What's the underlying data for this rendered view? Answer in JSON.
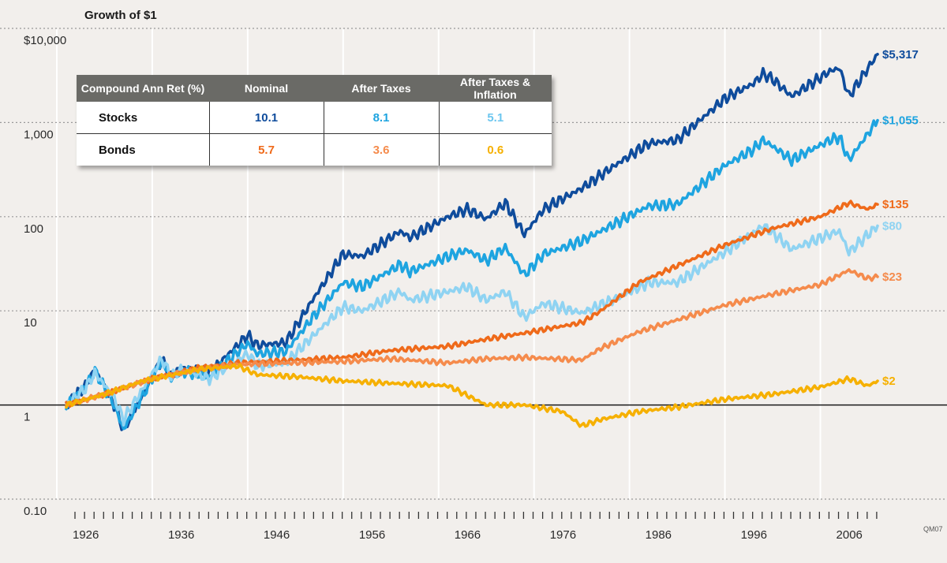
{
  "chart_data": {
    "type": "line",
    "title": "Growth of $1",
    "y_scale": "log",
    "ylim": [
      0.1,
      10000
    ],
    "y_ticks": [
      {
        "value": 10000,
        "label": "$10,000"
      },
      {
        "value": 1000,
        "label": "1,000"
      },
      {
        "value": 100,
        "label": "100"
      },
      {
        "value": 10,
        "label": "10"
      },
      {
        "value": 1,
        "label": "1"
      },
      {
        "value": 0.1,
        "label": "0.10"
      }
    ],
    "xlim": [
      1926,
      2011
    ],
    "x_ticks": [
      {
        "value": 1926,
        "label": "1926"
      },
      {
        "value": 1936,
        "label": "1936"
      },
      {
        "value": 1946,
        "label": "1946"
      },
      {
        "value": 1956,
        "label": "1956"
      },
      {
        "value": 1966,
        "label": "1966"
      },
      {
        "value": 1976,
        "label": "1976"
      },
      {
        "value": 1986,
        "label": "1986"
      },
      {
        "value": 1996,
        "label": "1996"
      },
      {
        "value": 2006,
        "label": "2006"
      }
    ],
    "code": "QM07",
    "series": [
      {
        "color": "#0f4c9c",
        "end_label": "$5,317",
        "x": [
          1926,
          1928,
          1929,
          1931,
          1932,
          1936,
          1937,
          1938,
          1941,
          1945,
          1946,
          1949,
          1952,
          1955,
          1957,
          1961,
          1962,
          1966,
          1968,
          1970,
          1972,
          1974,
          1976,
          1980,
          1984,
          1987,
          1990,
          1995,
          1998,
          1999,
          2000,
          2002,
          2006,
          2007,
          2008,
          2011
        ],
        "y": [
          1,
          1.6,
          2.4,
          1.0,
          0.55,
          3.0,
          2.0,
          2.5,
          2.2,
          5.5,
          4.3,
          4.6,
          14,
          40,
          38,
          70,
          60,
          100,
          120,
          95,
          140,
          65,
          120,
          200,
          380,
          600,
          650,
          1800,
          2600,
          3300,
          2900,
          1900,
          3500,
          3800,
          1900,
          5317
        ]
      },
      {
        "color": "#1ea4e0",
        "end_label": "$1,055",
        "x": [
          1926,
          1928,
          1929,
          1931,
          1932,
          1936,
          1937,
          1938,
          1941,
          1945,
          1946,
          1949,
          1952,
          1955,
          1957,
          1961,
          1962,
          1966,
          1968,
          1970,
          1972,
          1974,
          1976,
          1980,
          1984,
          1987,
          1990,
          1995,
          1998,
          1999,
          2000,
          2002,
          2006,
          2007,
          2008,
          2011
        ],
        "y": [
          1,
          1.6,
          2.3,
          1.0,
          0.55,
          2.9,
          1.9,
          2.3,
          2.0,
          4.5,
          3.5,
          3.7,
          9,
          20,
          18,
          31,
          26,
          38,
          44,
          34,
          47,
          24,
          40,
          55,
          90,
          130,
          135,
          350,
          520,
          650,
          560,
          400,
          650,
          700,
          400,
          1055
        ]
      },
      {
        "color": "#8fd3f2",
        "end_label": "$80",
        "x": [
          1926,
          1928,
          1929,
          1931,
          1932,
          1936,
          1937,
          1938,
          1941,
          1945,
          1946,
          1949,
          1952,
          1955,
          1957,
          1961,
          1962,
          1966,
          1968,
          1970,
          1972,
          1974,
          1976,
          1980,
          1984,
          1987,
          1990,
          1995,
          1998,
          1999,
          2000,
          2002,
          2006,
          2007,
          2008,
          2011
        ],
        "y": [
          1,
          1.5,
          2.2,
          1.2,
          0.7,
          3.1,
          2.0,
          2.4,
          1.9,
          3.5,
          2.6,
          2.8,
          5.6,
          11,
          10,
          16,
          13,
          16,
          18,
          13,
          16,
          8.5,
          12,
          9.5,
          14,
          20,
          20,
          42,
          68,
          80,
          68,
          45,
          65,
          70,
          42,
          80
        ]
      },
      {
        "color": "#ef6a1a",
        "end_label": "$135",
        "x": [
          1926,
          1930,
          1935,
          1940,
          1944,
          1950,
          1955,
          1960,
          1966,
          1970,
          1974,
          1980,
          1982,
          1986,
          1990,
          1995,
          2000,
          2005,
          2008,
          2010,
          2011
        ],
        "y": [
          1,
          1.3,
          1.9,
          2.5,
          2.8,
          3.0,
          3.2,
          3.8,
          4.2,
          5.0,
          5.8,
          7.5,
          10,
          20,
          30,
          50,
          75,
          100,
          140,
          120,
          135
        ]
      },
      {
        "color": "#f58b4c",
        "end_label": "$23",
        "x": [
          1926,
          1930,
          1935,
          1940,
          1944,
          1950,
          1955,
          1960,
          1966,
          1970,
          1974,
          1980,
          1982,
          1986,
          1990,
          1995,
          2000,
          2005,
          2008,
          2010,
          2011
        ],
        "y": [
          1,
          1.3,
          1.9,
          2.4,
          2.7,
          2.8,
          2.9,
          3.1,
          2.8,
          3.1,
          3.2,
          3.0,
          4.0,
          6.0,
          8.0,
          11.5,
          15,
          19,
          27,
          22,
          23
        ]
      },
      {
        "color": "#f6b000",
        "end_label": "$2",
        "x": [
          1926,
          1930,
          1934,
          1940,
          1944,
          1946,
          1950,
          1955,
          1960,
          1966,
          1970,
          1974,
          1978,
          1980,
          1982,
          1986,
          1990,
          1995,
          2000,
          2005,
          2008,
          2010,
          2011
        ],
        "y": [
          1,
          1.3,
          1.8,
          2.4,
          2.6,
          2.1,
          2.0,
          1.8,
          1.7,
          1.6,
          1.0,
          1.0,
          0.85,
          0.6,
          0.7,
          0.85,
          0.95,
          1.15,
          1.3,
          1.55,
          1.9,
          1.6,
          1.8
        ]
      }
    ]
  },
  "table": {
    "headers": [
      "Compound Ann Ret (%)",
      "Nominal",
      "After Taxes",
      "After Taxes & Inflation"
    ],
    "rows": [
      {
        "label": "Stocks",
        "values": [
          "10.1",
          "8.1",
          "5.1"
        ],
        "colors": [
          "#0f4c9c",
          "#1ea4e0",
          "#6cc6ef"
        ]
      },
      {
        "label": "Bonds",
        "values": [
          "5.7",
          "3.6",
          "0.6"
        ],
        "colors": [
          "#ef6a1a",
          "#f58b4c",
          "#f6b000"
        ]
      }
    ]
  }
}
